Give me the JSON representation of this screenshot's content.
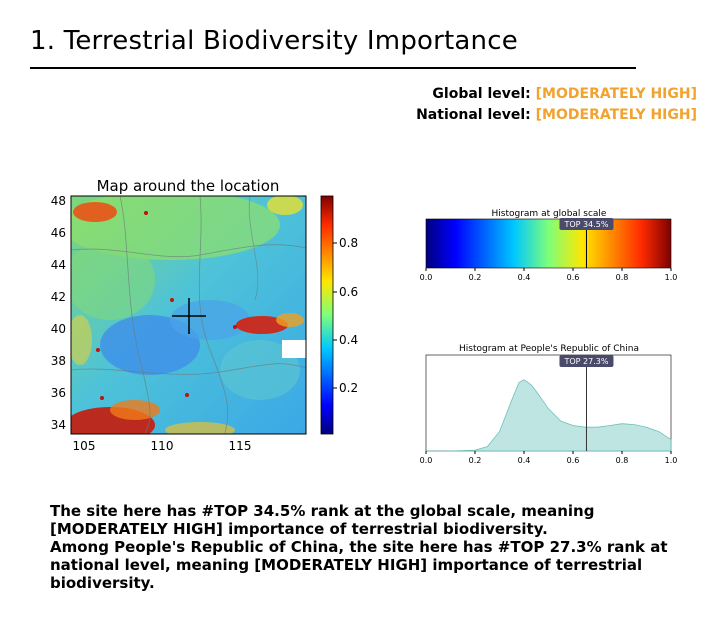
{
  "page": {
    "title": "1. Terrestrial Biodiversity Importance"
  },
  "levels": {
    "global_label": "Global level:",
    "global_value": "[MODERATELY HIGH]",
    "national_label": "National level:",
    "national_value": "[MODERATELY HIGH]"
  },
  "map": {
    "title": "Map around the location",
    "y_ticks": [
      "48",
      "46",
      "44",
      "42",
      "40",
      "38",
      "36",
      "34"
    ],
    "x_ticks": [
      "105",
      "110",
      "115"
    ],
    "colorbar_ticks": [
      "0.8",
      "0.6",
      "0.4",
      "0.2"
    ]
  },
  "chart_data": [
    {
      "type": "heatmap",
      "title": "Histogram at global scale",
      "x_ticks": [
        "0.0",
        "0.2",
        "0.4",
        "0.6",
        "0.8",
        "1.0"
      ],
      "xlim": [
        0,
        1
      ],
      "marker_value": 0.655,
      "marker_label": "TOP 34.5%"
    },
    {
      "type": "area",
      "title": "Histogram at People's Republic of China",
      "x_ticks": [
        "0.0",
        "0.2",
        "0.4",
        "0.6",
        "0.8",
        "1.0"
      ],
      "xlim": [
        0,
        1
      ],
      "ylim": [
        0,
        1
      ],
      "x": [
        0.0,
        0.1,
        0.2,
        0.25,
        0.3,
        0.35,
        0.38,
        0.4,
        0.43,
        0.46,
        0.5,
        0.55,
        0.6,
        0.65,
        0.7,
        0.75,
        0.8,
        0.85,
        0.9,
        0.95,
        1.0
      ],
      "y": [
        0.0,
        0.0,
        0.01,
        0.05,
        0.22,
        0.58,
        0.78,
        0.81,
        0.75,
        0.64,
        0.48,
        0.34,
        0.29,
        0.27,
        0.27,
        0.29,
        0.31,
        0.3,
        0.27,
        0.22,
        0.13
      ],
      "marker_value": 0.655,
      "marker_label": "TOP 27.3%"
    }
  ],
  "summary": {
    "line1": "The site here has #TOP 34.5% rank at the global scale, meaning [MODERATELY HIGH] importance of terrestrial biodiversity.",
    "line2": "Among People's Republic of China, the site here has #TOP 27.3% rank at national level, meaning  [MODERATELY HIGH] importance of terrestrial biodiversity."
  }
}
